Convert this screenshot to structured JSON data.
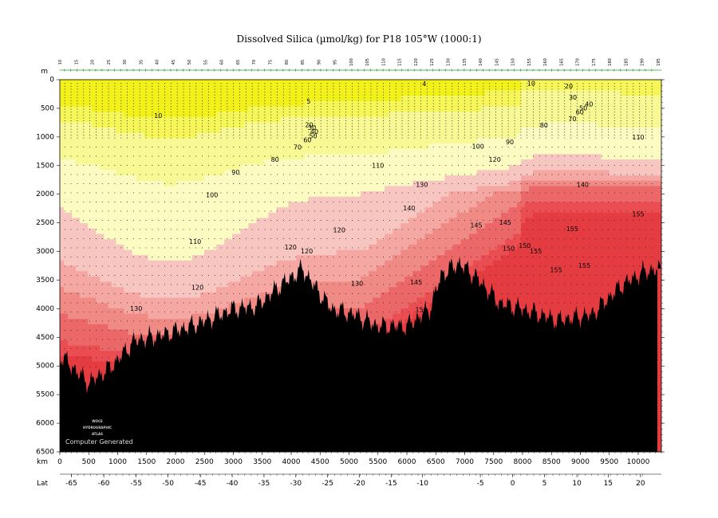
{
  "chart_data": {
    "type": "heatmap",
    "title": "Dissolved Silica (µmol/kg) for P18 105°W (1000:1)",
    "xlabel": "km",
    "ylabel": "m",
    "lat_label": "Lat",
    "watermark_lines": [
      "WOCE",
      "HYDROGRAPHIC",
      "ATLAS"
    ],
    "watermark_text": "Computer Generated",
    "xlim": [
      0,
      10400
    ],
    "ylim": [
      6500,
      0
    ],
    "x_ticks": [
      0,
      500,
      1000,
      1500,
      2000,
      2500,
      3000,
      3500,
      4000,
      4500,
      5000,
      5500,
      6000,
      6500,
      7000,
      7500,
      8000,
      8500,
      9000,
      9500,
      10000
    ],
    "y_ticks": [
      0,
      500,
      1000,
      1500,
      2000,
      2500,
      3000,
      3500,
      4000,
      4500,
      5000,
      5500,
      6000,
      6500
    ],
    "lat_ticks": [
      {
        "label": "-65",
        "km": 200
      },
      {
        "label": "-60",
        "km": 760
      },
      {
        "label": "-55",
        "km": 1320
      },
      {
        "label": "-50",
        "km": 1870
      },
      {
        "label": "-45",
        "km": 2430
      },
      {
        "label": "-40",
        "km": 2980
      },
      {
        "label": "-35",
        "km": 3530
      },
      {
        "label": "-30",
        "km": 4080
      },
      {
        "label": "-25",
        "km": 4630
      },
      {
        "label": "-20",
        "km": 5180
      },
      {
        "label": "-15",
        "km": 5730
      },
      {
        "label": "-10",
        "km": 6270
      },
      {
        "label": "-5",
        "km": 7270
      },
      {
        "label": "0",
        "km": 7830
      },
      {
        "label": "5",
        "km": 8380
      },
      {
        "label": "10",
        "km": 8940
      },
      {
        "label": "15",
        "km": 9480
      },
      {
        "label": "20",
        "km": 10040
      }
    ],
    "stations": [
      "10",
      "15",
      "20",
      "25",
      "30",
      "35",
      "40",
      "45",
      "50",
      "55",
      "60",
      "65",
      "70",
      "75",
      "80",
      "85",
      "90",
      "95",
      "100",
      "105",
      "110",
      "115",
      "120",
      "125",
      "130",
      "135",
      "140",
      "145",
      "150",
      "155",
      "160",
      "165",
      "170",
      "175",
      "180",
      "185",
      "190",
      "195"
    ],
    "levels": [
      {
        "max": 10,
        "color": "#f2f21a"
      },
      {
        "max": 20,
        "color": "#f6f658"
      },
      {
        "max": 60,
        "color": "#f8f895"
      },
      {
        "max": 100,
        "color": "#fbfbc2"
      },
      {
        "max": 120,
        "color": "#f8c6c0"
      },
      {
        "max": 130,
        "color": "#f5a8a3"
      },
      {
        "max": 140,
        "color": "#f08a84"
      },
      {
        "max": 150,
        "color": "#ec6868"
      },
      {
        "max": 155,
        "color": "#ea4e52"
      },
      {
        "max": 999,
        "color": "#e53c42"
      }
    ],
    "contour_labels": [
      {
        "text": "4",
        "km": 6300,
        "depth": 80
      },
      {
        "text": "5",
        "km": 4300,
        "depth": 380
      },
      {
        "text": "10",
        "km": 1700,
        "depth": 630
      },
      {
        "text": "10",
        "km": 8150,
        "depth": 70
      },
      {
        "text": "20",
        "km": 8800,
        "depth": 120
      },
      {
        "text": "30",
        "km": 8870,
        "depth": 310
      },
      {
        "text": "40",
        "km": 9150,
        "depth": 430
      },
      {
        "text": "50",
        "km": 9050,
        "depth": 500
      },
      {
        "text": "60",
        "km": 8990,
        "depth": 570
      },
      {
        "text": "70",
        "km": 8860,
        "depth": 690
      },
      {
        "text": "80",
        "km": 8370,
        "depth": 800
      },
      {
        "text": "90",
        "km": 7780,
        "depth": 1090
      },
      {
        "text": "100",
        "km": 7230,
        "depth": 1170
      },
      {
        "text": "110",
        "km": 5500,
        "depth": 1500
      },
      {
        "text": "110",
        "km": 10000,
        "depth": 1010
      },
      {
        "text": "120",
        "km": 7520,
        "depth": 1400
      },
      {
        "text": "130",
        "km": 6260,
        "depth": 1840
      },
      {
        "text": "140",
        "km": 6040,
        "depth": 2250
      },
      {
        "text": "140",
        "km": 9040,
        "depth": 1840
      },
      {
        "text": "145",
        "km": 7200,
        "depth": 2550
      },
      {
        "text": "145",
        "km": 7700,
        "depth": 2500
      },
      {
        "text": "145",
        "km": 6160,
        "depth": 3540
      },
      {
        "text": "150",
        "km": 7760,
        "depth": 2950
      },
      {
        "text": "150",
        "km": 8040,
        "depth": 2900
      },
      {
        "text": "155",
        "km": 8230,
        "depth": 3000
      },
      {
        "text": "155",
        "km": 8860,
        "depth": 2610
      },
      {
        "text": "155",
        "km": 10000,
        "depth": 2350
      },
      {
        "text": "155",
        "km": 9070,
        "depth": 3250
      },
      {
        "text": "155",
        "km": 8580,
        "depth": 3330
      },
      {
        "text": "150",
        "km": 6250,
        "depth": 4020
      },
      {
        "text": "130",
        "km": 5140,
        "depth": 3560
      },
      {
        "text": "120",
        "km": 3990,
        "depth": 2930
      },
      {
        "text": "120",
        "km": 4270,
        "depth": 3000
      },
      {
        "text": "120",
        "km": 4830,
        "depth": 2630
      },
      {
        "text": "120",
        "km": 2380,
        "depth": 3630
      },
      {
        "text": "110",
        "km": 2340,
        "depth": 2830
      },
      {
        "text": "100",
        "km": 2630,
        "depth": 2020
      },
      {
        "text": "90",
        "km": 3040,
        "depth": 1620
      },
      {
        "text": "80",
        "km": 3720,
        "depth": 1400
      },
      {
        "text": "70",
        "km": 4110,
        "depth": 1180
      },
      {
        "text": "60",
        "km": 4280,
        "depth": 1060
      },
      {
        "text": "50",
        "km": 4380,
        "depth": 990
      },
      {
        "text": "40",
        "km": 4400,
        "depth": 910
      },
      {
        "text": "30",
        "km": 4360,
        "depth": 840
      },
      {
        "text": "20",
        "km": 4310,
        "depth": 790
      },
      {
        "text": "130",
        "km": 1320,
        "depth": 4000
      }
    ]
  }
}
